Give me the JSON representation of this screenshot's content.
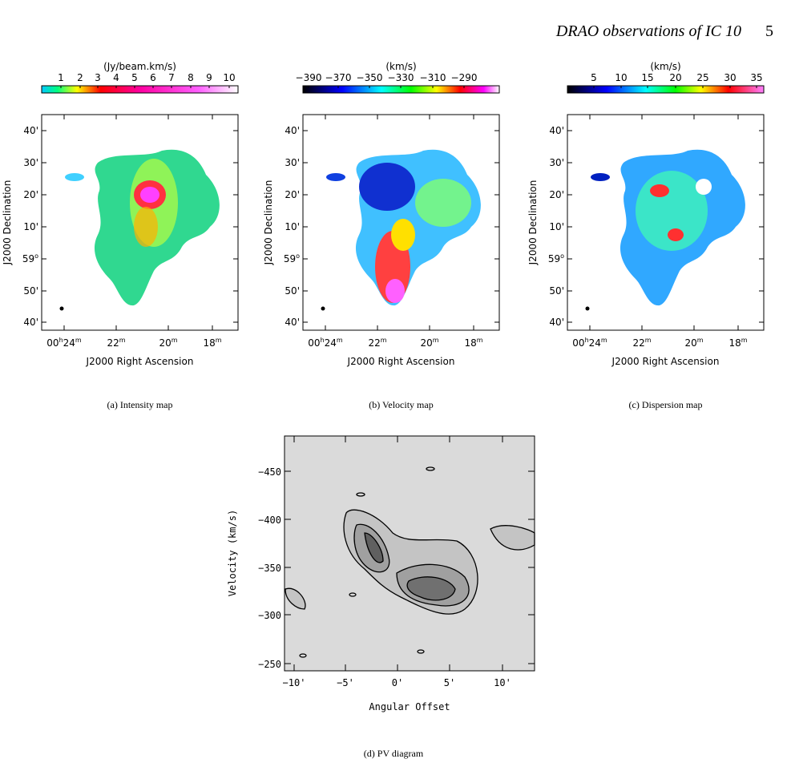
{
  "header": {
    "title": "DRAO observations of IC 10",
    "page": "5"
  },
  "panels": [
    {
      "colorbar_label": "(Jy/beam.km/s)",
      "colorbar_ticks": [
        "1",
        "2",
        "3",
        "4",
        "5",
        "6",
        "7",
        "8",
        "9",
        "10"
      ],
      "y_ticks": [
        [
          "40'"
        ],
        [
          "30'"
        ],
        [
          "20'"
        ],
        [
          "10'"
        ],
        [
          "59",
          "o"
        ],
        [
          "50'"
        ],
        [
          "40'"
        ]
      ],
      "x_ticks": [
        [
          "00",
          "h",
          "24",
          "m"
        ],
        [
          "22",
          "m"
        ],
        [
          "20",
          "m"
        ],
        [
          "18",
          "m"
        ]
      ],
      "x_label": "J2000 Right Ascension",
      "y_label": "J2000 Declination",
      "caption": "(a) Intensity map"
    },
    {
      "colorbar_label": "(km/s)",
      "colorbar_ticks": [
        "−390",
        "−370",
        "−350",
        "−330",
        "−310",
        "−290"
      ],
      "y_ticks": [
        [
          "40'"
        ],
        [
          "30'"
        ],
        [
          "20'"
        ],
        [
          "10'"
        ],
        [
          "59",
          "o"
        ],
        [
          "50'"
        ],
        [
          "40'"
        ]
      ],
      "x_ticks": [
        [
          "00",
          "h",
          "24",
          "m"
        ],
        [
          "22",
          "m"
        ],
        [
          "20",
          "m"
        ],
        [
          "18",
          "m"
        ]
      ],
      "x_label": "J2000 Right Ascension",
      "y_label": "J2000 Declination",
      "caption": "(b) Velocity map"
    },
    {
      "colorbar_label": "(km/s)",
      "colorbar_ticks": [
        "5",
        "10",
        "15",
        "20",
        "25",
        "30",
        "35"
      ],
      "y_ticks": [
        [
          "40'"
        ],
        [
          "30'"
        ],
        [
          "20'"
        ],
        [
          "10'"
        ],
        [
          "59",
          "o"
        ],
        [
          "50'"
        ],
        [
          "40'"
        ]
      ],
      "x_ticks": [
        [
          "00",
          "h",
          "24",
          "m"
        ],
        [
          "22",
          "m"
        ],
        [
          "20",
          "m"
        ],
        [
          "18",
          "m"
        ]
      ],
      "x_label": "J2000 Right Ascension",
      "y_label": "J2000 Declination",
      "caption": "(c) Dispersion map"
    }
  ],
  "pv": {
    "y_ticks": [
      "−450",
      "−400",
      "−350",
      "−300",
      "−250"
    ],
    "x_ticks": [
      "−10'",
      "−5'",
      "0'",
      "5'",
      "10'"
    ],
    "x_label": "Angular Offset",
    "y_label": "Velocity (km/s)",
    "caption": "(d) PV diagram"
  }
}
